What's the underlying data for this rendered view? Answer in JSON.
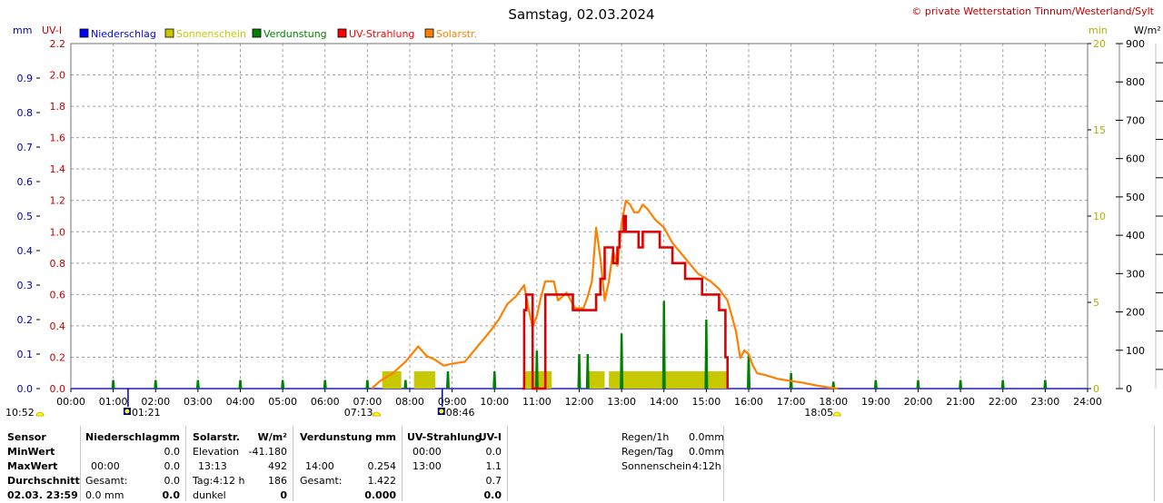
{
  "header": {
    "title": "Samstag, 02.03.2024",
    "credit": "© private Wetterstation Tinnum/Westerland/Sylt"
  },
  "legend": [
    {
      "label": "Niederschlag",
      "color": "#0000ff"
    },
    {
      "label": "Sonnenschein",
      "color": "#c8c800"
    },
    {
      "label": "Verdunstung",
      "color": "#008000"
    },
    {
      "label": "UV-Strahlung",
      "color": "#ff0000"
    },
    {
      "label": "Solarstr.",
      "color": "#ff8000"
    }
  ],
  "axes": {
    "mm": {
      "unit": "mm",
      "ticks": [
        "0.0",
        "0.1",
        "0.2",
        "0.3",
        "0.4",
        "0.5",
        "0.6",
        "0.7",
        "0.8",
        "0.9"
      ],
      "color": "#0000b0"
    },
    "uvi": {
      "unit": "UV-I",
      "ticks": [
        "0.0",
        "0.2",
        "0.4",
        "0.6",
        "0.8",
        "1.0",
        "1.2",
        "1.4",
        "1.6",
        "1.8",
        "2.0",
        "2.2"
      ],
      "color": "#c00000"
    },
    "min": {
      "unit": "min",
      "ticks": [
        "0",
        "5",
        "10",
        "15",
        "20"
      ],
      "color": "#b0b000"
    },
    "wm2": {
      "unit": "W/m²",
      "ticks": [
        "0",
        "100",
        "200",
        "300",
        "400",
        "500",
        "600",
        "700",
        "800",
        "900"
      ],
      "color": "#000000"
    },
    "x_ticks": [
      "00:00",
      "01:00",
      "02:00",
      "03:00",
      "04:00",
      "05:00",
      "06:00",
      "07:00",
      "08:00",
      "09:00",
      "10:00",
      "11:00",
      "12:00",
      "13:00",
      "14:00",
      "15:00",
      "16:00",
      "17:00",
      "18:00",
      "19:00",
      "20:00",
      "21:00",
      "22:00",
      "23:00",
      "24:00"
    ]
  },
  "events": [
    {
      "label": "10:52",
      "hour": 0.0,
      "kind": "sun"
    },
    {
      "label": "01:21",
      "hour": 1.35,
      "kind": "moon"
    },
    {
      "label": "07:13",
      "hour": 7.217,
      "kind": "sun"
    },
    {
      "label": "08:46",
      "hour": 8.767,
      "kind": "moon"
    },
    {
      "label": "18:05",
      "hour": 18.083,
      "kind": "sun"
    }
  ],
  "chart_data": {
    "type": "line",
    "title": "Samstag, 02.03.2024",
    "x_range": [
      0,
      24
    ],
    "series": [
      {
        "name": "Solarstr.",
        "axis": "W/m²",
        "ylim": [
          0,
          900
        ],
        "x": [
          7.1,
          7.3,
          7.6,
          7.9,
          8.2,
          8.4,
          8.6,
          8.8,
          9.0,
          9.3,
          9.6,
          9.9,
          10.1,
          10.3,
          10.5,
          10.7,
          10.8,
          10.9,
          11.0,
          11.1,
          11.2,
          11.4,
          11.5,
          11.7,
          11.9,
          12.1,
          12.2,
          12.3,
          12.4,
          12.5,
          12.6,
          12.7,
          12.8,
          12.9,
          13.0,
          13.1,
          13.2,
          13.3,
          13.4,
          13.5,
          13.6,
          13.8,
          14.0,
          14.2,
          14.5,
          14.8,
          15.1,
          15.3,
          15.5,
          15.7,
          15.8,
          15.9,
          16.0,
          16.1,
          16.2,
          16.4,
          16.7,
          17.0,
          17.3,
          17.6,
          17.9,
          18.1
        ],
        "y": [
          0,
          20,
          40,
          70,
          110,
          85,
          75,
          60,
          65,
          70,
          110,
          150,
          180,
          220,
          240,
          270,
          210,
          160,
          190,
          240,
          280,
          280,
          230,
          250,
          210,
          210,
          240,
          280,
          420,
          340,
          230,
          280,
          360,
          320,
          430,
          490,
          480,
          460,
          460,
          480,
          470,
          440,
          420,
          380,
          340,
          300,
          280,
          260,
          230,
          150,
          80,
          100,
          90,
          60,
          40,
          35,
          25,
          20,
          15,
          8,
          3,
          0
        ]
      },
      {
        "name": "UV-Strahlung",
        "axis": "UV-I",
        "ylim": [
          0,
          2.2
        ],
        "x": [
          10.65,
          10.7,
          10.75,
          10.85,
          10.9,
          11.15,
          11.2,
          11.3,
          11.6,
          11.8,
          11.85,
          11.95,
          12.1,
          12.3,
          12.4,
          12.5,
          12.6,
          12.7,
          12.8,
          12.9,
          12.95,
          13.05,
          13.1,
          13.2,
          13.3,
          13.4,
          13.5,
          13.7,
          13.9,
          14.1,
          14.2,
          14.4,
          14.5,
          14.8,
          14.9,
          15.1,
          15.3,
          15.35,
          15.45,
          15.5
        ],
        "y": [
          0,
          0.5,
          0.6,
          0.6,
          0.0,
          0.0,
          0.6,
          0.6,
          0.6,
          0.6,
          0.5,
          0.5,
          0.5,
          0.5,
          0.6,
          0.7,
          0.9,
          0.9,
          0.8,
          0.9,
          1.0,
          1.1,
          1.0,
          1.0,
          1.0,
          0.9,
          1.0,
          1.0,
          0.9,
          0.9,
          0.8,
          0.8,
          0.7,
          0.7,
          0.6,
          0.6,
          0.5,
          0.5,
          0.2,
          0.0
        ]
      },
      {
        "name": "Sonnenschein",
        "axis": "min",
        "ylim": [
          0,
          20
        ],
        "x": [
          7.35,
          7.8,
          8.1,
          8.6,
          10.7,
          11.35,
          12.2,
          12.6,
          12.7,
          15.5
        ],
        "y": [
          1,
          1,
          1,
          1,
          1,
          1,
          1,
          1,
          1,
          1
        ]
      },
      {
        "name": "Verdunstung",
        "axis": "mm",
        "ylim": [
          0,
          1.0
        ],
        "x": [
          1,
          2,
          3,
          4,
          5,
          6,
          7,
          7.9,
          8.9,
          10,
          11,
          12,
          12.2,
          13,
          14,
          15,
          16,
          17,
          18,
          19,
          20,
          21,
          22,
          23
        ],
        "y": [
          0.025,
          0.025,
          0.025,
          0.025,
          0.025,
          0.025,
          0.025,
          0.025,
          0.05,
          0.05,
          0.11,
          0.1,
          0.1,
          0.16,
          0.254,
          0.2,
          0.1,
          0.045,
          0.02,
          0.025,
          0.025,
          0.025,
          0.025,
          0.025
        ]
      },
      {
        "name": "Niederschlag",
        "axis": "mm",
        "ylim": [
          0,
          1.0
        ],
        "x": [],
        "y": []
      }
    ]
  },
  "stats": {
    "col1": {
      "header": "Sensor",
      "rows": [
        "MinWert",
        "MaxWert",
        "Durchschnitt",
        "02.03. 23:59"
      ]
    },
    "niederschlag": {
      "title": "Niederschlag",
      "unit": "mm",
      "min": "0.0",
      "max_time": "00:00",
      "max": "0.0",
      "gesamt_label": "Gesamt:",
      "gesamt": "0.0",
      "last_left": "0.0 mm",
      "last_right": "0.0"
    },
    "solar": {
      "title": "Solarstr.",
      "unit": "W/m²",
      "elev_label": "Elevation",
      "elev": "-41.180",
      "max_time": "13:13",
      "max": "492",
      "tag_label": "Tag:4:12 h",
      "avg": "186",
      "dark_label": "dunkel",
      "last": "0"
    },
    "verdunstung": {
      "title": "Verdunstung",
      "unit": "mm",
      "max_time": "14:00",
      "max": "0.254",
      "gesamt_label": "Gesamt:",
      "gesamt": "1.422",
      "last": "0.000"
    },
    "uv": {
      "title": "UV-Strahlung",
      "unit": "UV-I",
      "min_time": "00:00",
      "min": "0.0",
      "max_time": "13:00",
      "max": "1.1",
      "avg": "0.7",
      "last": "0.0"
    },
    "extra": [
      {
        "label": "Regen/1h",
        "value": "0.0mm"
      },
      {
        "label": "Regen/Tag",
        "value": "0.0mm"
      },
      {
        "label": "Sonnenschein",
        "value": "4:12h"
      }
    ]
  }
}
